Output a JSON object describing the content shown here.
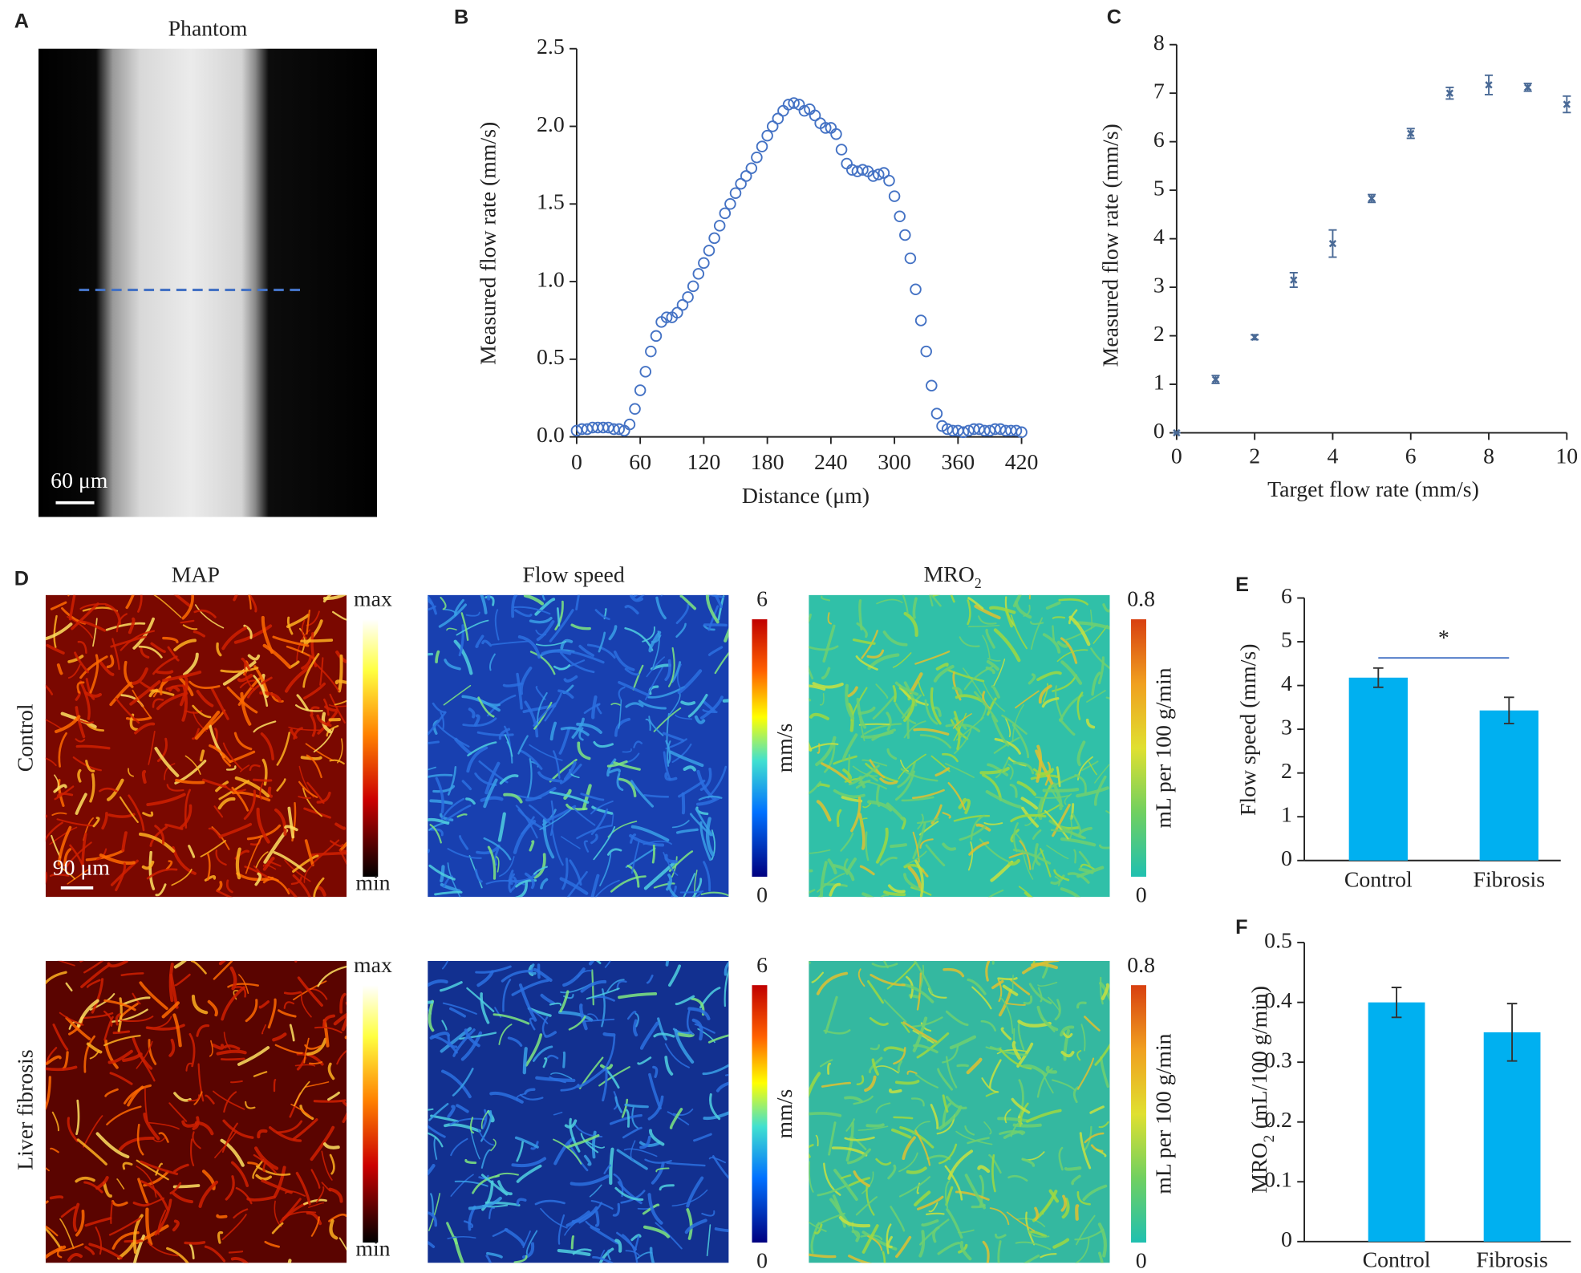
{
  "panel_labels": [
    "A",
    "B",
    "C",
    "D",
    "E",
    "F"
  ],
  "images": {
    "phantom": {
      "title": "Phantom",
      "scale_bar": "60 μm"
    },
    "columns": [
      "MAP",
      "Flow speed",
      "MRO"
    ],
    "column_sub": "2",
    "rows": [
      "Control",
      "Liver fibrosis"
    ],
    "scale_bar": "90 μm",
    "map_bar": {
      "max": "max",
      "min": "min"
    },
    "flow_bar": {
      "max": "6",
      "min": "0",
      "unit": "mm/s"
    },
    "mro_bar": {
      "max": "0.8",
      "min": "0",
      "unit": "mL per 100 g/min"
    }
  },
  "chart_data": [
    {
      "type": "scatter",
      "marker": "circle-open",
      "color": "#4472c4",
      "x_label": "Distance (μm)",
      "y_label": "Measured flow rate (mm/s)",
      "x": [
        0,
        5,
        10,
        15,
        20,
        25,
        30,
        35,
        40,
        45,
        50,
        55,
        60,
        65,
        70,
        75,
        80,
        85,
        90,
        95,
        100,
        105,
        110,
        115,
        120,
        125,
        130,
        135,
        140,
        145,
        150,
        155,
        160,
        165,
        170,
        175,
        180,
        185,
        190,
        195,
        200,
        205,
        210,
        215,
        220,
        225,
        230,
        235,
        240,
        245,
        250,
        255,
        260,
        265,
        270,
        275,
        280,
        285,
        290,
        295,
        300,
        305,
        310,
        315,
        320,
        325,
        330,
        335,
        340,
        345,
        350,
        355,
        360,
        365,
        370,
        375,
        380,
        385,
        390,
        395,
        400,
        405,
        410,
        415,
        420
      ],
      "values": [
        0.04,
        0.05,
        0.05,
        0.06,
        0.06,
        0.06,
        0.06,
        0.05,
        0.05,
        0.04,
        0.08,
        0.18,
        0.3,
        0.42,
        0.55,
        0.65,
        0.74,
        0.77,
        0.77,
        0.8,
        0.85,
        0.9,
        0.97,
        1.05,
        1.12,
        1.2,
        1.28,
        1.36,
        1.44,
        1.5,
        1.57,
        1.63,
        1.68,
        1.73,
        1.8,
        1.87,
        1.94,
        2.0,
        2.05,
        2.1,
        2.14,
        2.15,
        2.14,
        2.1,
        2.11,
        2.07,
        2.02,
        1.99,
        1.99,
        1.95,
        1.85,
        1.76,
        1.72,
        1.71,
        1.72,
        1.71,
        1.68,
        1.69,
        1.7,
        1.65,
        1.55,
        1.42,
        1.3,
        1.15,
        0.95,
        0.75,
        0.55,
        0.33,
        0.15,
        0.07,
        0.05,
        0.04,
        0.04,
        0.03,
        0.04,
        0.05,
        0.05,
        0.04,
        0.04,
        0.05,
        0.05,
        0.04,
        0.04,
        0.04,
        0.03
      ],
      "xlim": [
        0,
        420
      ],
      "xticks": [
        0,
        60,
        120,
        180,
        240,
        300,
        360,
        420
      ],
      "ylim": [
        0,
        2.5
      ],
      "yticks": [
        {
          "value": 0,
          "label": "0.0"
        },
        0.5,
        {
          "value": 1,
          "label": "1.0"
        },
        1.5,
        {
          "value": 2,
          "label": "2.0"
        },
        2.5
      ]
    },
    {
      "type": "scatter",
      "marker": "x",
      "color": "#4a6a96",
      "x_label": "Target flow rate (mm/s)",
      "y_label": "Measured flow rate (mm/s)",
      "x": [
        0,
        1,
        2,
        3,
        4,
        5,
        6,
        7,
        8,
        9,
        10
      ],
      "values": [
        0,
        1.1,
        1.97,
        3.15,
        3.9,
        4.83,
        6.17,
        7.0,
        7.17,
        7.12,
        6.77
      ],
      "errors": [
        0,
        0.08,
        0.05,
        0.15,
        0.28,
        0.08,
        0.1,
        0.12,
        0.2,
        0.08,
        0.17
      ],
      "xlim": [
        0,
        10
      ],
      "xticks": [
        0,
        2,
        4,
        6,
        8,
        10
      ],
      "ylim": [
        0,
        8
      ],
      "yticks": [
        0,
        1,
        2,
        3,
        4,
        5,
        6,
        7,
        8
      ]
    },
    {
      "type": "bar",
      "color": "#00b0f0",
      "y_label": "Flow speed (mm/s)",
      "categories": [
        "Control",
        "Fibrosis"
      ],
      "values": [
        4.18,
        3.43
      ],
      "errors": [
        0.22,
        0.3
      ],
      "significance": "*",
      "ylim": [
        0,
        6
      ],
      "yticks": [
        0,
        1,
        2,
        3,
        4,
        5,
        6
      ]
    },
    {
      "type": "bar",
      "color": "#00b0f0",
      "y_label": "MRO",
      "y_label_sub": "2",
      "y_label_rest": "(mL/100 g/min)",
      "categories": [
        "Control",
        "Fibrosis"
      ],
      "values": [
        0.4,
        0.35
      ],
      "errors": [
        0.025,
        0.048
      ],
      "ylim": [
        0,
        0.5
      ],
      "yticks": [
        0,
        0.1,
        0.2,
        0.3,
        0.4,
        0.5
      ]
    }
  ]
}
